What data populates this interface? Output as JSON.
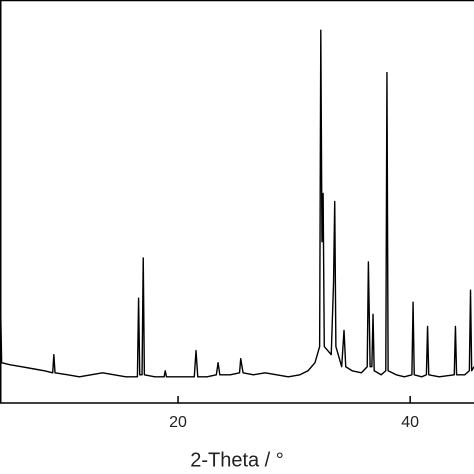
{
  "chart_data": {
    "type": "line",
    "x_label": "2-Theta / °",
    "xlim": [
      4.66,
      45.5
    ],
    "xticks": [
      20,
      40
    ],
    "ylim": [
      0,
      100
    ],
    "series": [
      {
        "color": "#000000",
        "x": [
          4.7,
          4.8,
          5.5,
          6.5,
          7.5,
          8.5,
          9.2,
          9.3,
          9.4,
          10.5,
          11.5,
          12.5,
          13.5,
          14.5,
          15.5,
          16.5,
          16.6,
          16.7,
          16.9,
          17.0,
          17.1,
          18,
          18.8,
          18.9,
          19,
          20,
          21.4,
          21.55,
          21.7,
          22.5,
          23.3,
          23.45,
          23.6,
          24.5,
          25.3,
          25.4,
          25.6,
          26.5,
          27.5,
          28.5,
          29.5,
          30.5,
          31.2,
          31.8,
          32.2,
          32.3,
          32.4,
          32.5,
          32.6,
          33.2,
          33.4,
          33.5,
          33.6,
          34.1,
          34.3,
          34.45,
          35,
          35.8,
          36.3,
          36.4,
          36.55,
          36.7,
          36.8,
          36.9,
          37.5,
          37.9,
          38.0,
          38.1,
          38.8,
          39.5,
          40.15,
          40.25,
          40.35,
          41.0,
          41.4,
          41.5,
          41.6,
          42.5,
          43.8,
          43.9,
          44.0,
          44.7,
          45.1,
          45.2,
          45.3,
          45.5
        ],
        "values": [
          26,
          10,
          9.5,
          9,
          8.5,
          8,
          7.5,
          12,
          7.5,
          7,
          6.5,
          7,
          7.5,
          7,
          6.5,
          6.5,
          26,
          7,
          7,
          36,
          7,
          6.5,
          6.5,
          8,
          6.5,
          6.5,
          6.5,
          13,
          6.5,
          6.5,
          7,
          10,
          7,
          7,
          7.5,
          11,
          7.5,
          7,
          7.5,
          7,
          6.5,
          7,
          8,
          10,
          14,
          92.5,
          40,
          52,
          14,
          12,
          30,
          50,
          14,
          9,
          18,
          9,
          8,
          7.5,
          9,
          35,
          9,
          9,
          22,
          8,
          7,
          8,
          82,
          8,
          7,
          6.5,
          7,
          25,
          7,
          6.5,
          7,
          19,
          7,
          6.5,
          7,
          19,
          7,
          7,
          8,
          28,
          8,
          9
        ]
      }
    ]
  }
}
